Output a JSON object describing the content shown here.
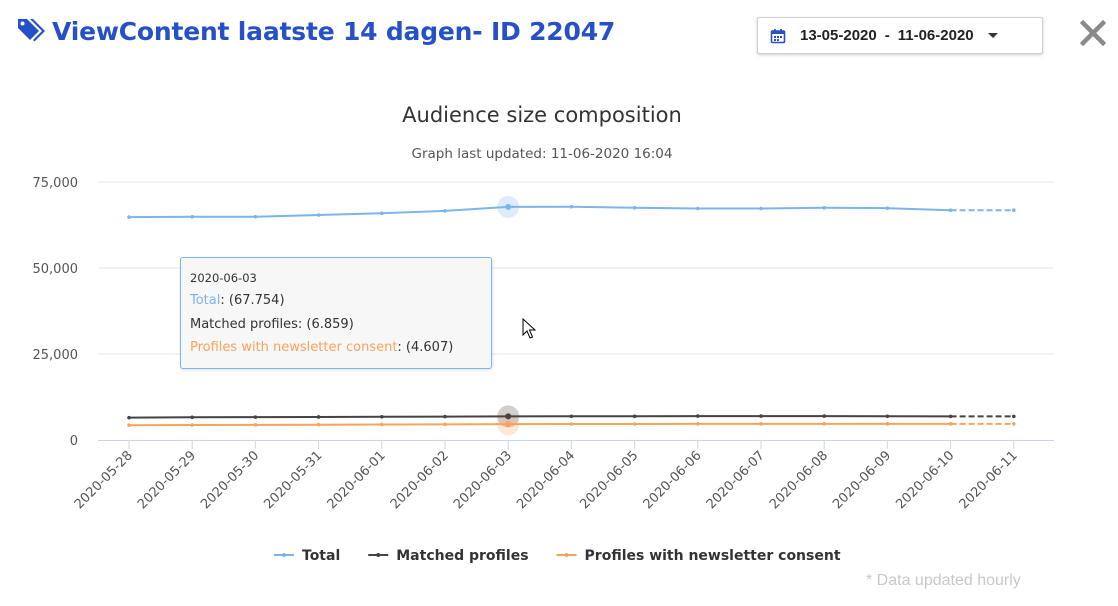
{
  "header": {
    "title": "ViewContent laatste 14 dagen- ID 22047",
    "icon": "tag-icon",
    "date_from": "13-05-2020",
    "date_separator": "-",
    "date_to": "11-06-2020",
    "calendar_icon": "calendar-icon",
    "close_icon": "close-icon"
  },
  "colors": {
    "title": "#2550c8",
    "total": "#7cb5ec",
    "matched": "#434348",
    "consent": "#f7a35c",
    "grid": "#e6e6e6"
  },
  "chart_data": {
    "type": "line",
    "title": "Audience size composition",
    "subtitle": "Graph last updated: 11-06-2020 16:04",
    "categories": [
      "2020-05-28",
      "2020-05-29",
      "2020-05-30",
      "2020-05-31",
      "2020-06-01",
      "2020-06-02",
      "2020-06-03",
      "2020-06-04",
      "2020-06-05",
      "2020-06-06",
      "2020-06-07",
      "2020-06-08",
      "2020-06-09",
      "2020-06-10",
      "2020-06-11"
    ],
    "yticks": [
      "0",
      "25,000",
      "50,000",
      "75,000"
    ],
    "ylim": [
      0,
      75000
    ],
    "grid": true,
    "legend_position": "bottom",
    "dashed_last_segment": true,
    "highlighted_index": 6,
    "series": [
      {
        "name": "Total",
        "color": "#7cb5ec",
        "values": [
          64800,
          64900,
          64900,
          65400,
          65900,
          66600,
          67754,
          67800,
          67500,
          67300,
          67300,
          67500,
          67400,
          66800,
          66800
        ]
      },
      {
        "name": "Matched profiles",
        "color": "#434348",
        "values": [
          6500,
          6600,
          6650,
          6700,
          6750,
          6800,
          6859,
          6900,
          6900,
          6950,
          6950,
          6950,
          6900,
          6850,
          6850
        ]
      },
      {
        "name": "Profiles with newsletter consent",
        "color": "#f7a35c",
        "values": [
          4300,
          4350,
          4400,
          4450,
          4500,
          4550,
          4607,
          4650,
          4650,
          4700,
          4700,
          4700,
          4700,
          4700,
          4700
        ]
      }
    ]
  },
  "tooltip": {
    "date": "2020-06-03",
    "total_label": "Total",
    "total_value": ": (67.754)",
    "matched_label": "Matched profiles",
    "matched_value": ": (6.859)",
    "consent_label": "Profiles with newsletter consent",
    "consent_value": ": (4.607)"
  },
  "footnote": "* Data updated hourly"
}
